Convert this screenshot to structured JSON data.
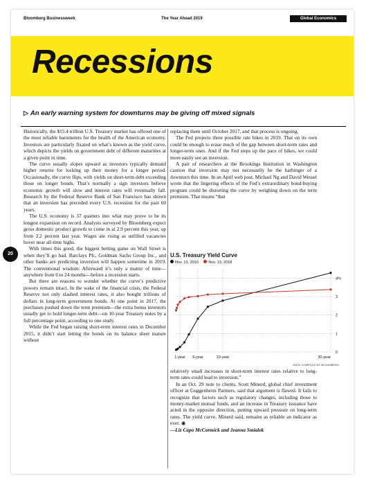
{
  "header": {
    "publication": "Bloomberg Businessweek",
    "issue": "The Year Ahead 2019",
    "section": "Global Economics"
  },
  "title": "Recessions",
  "deck": "An early warning system for downturns may be giving off mixed signals",
  "page_number": "20",
  "column1": [
    "Historically, the $15.4 trillion U.S. Treasury market has offered one of the most reliable barometers for the health of the American economy. Investors are particularly fixated on what’s known as the yield curve, which depicts the yields on government debt of different maturities at a given point in time.",
    "The curve usually slopes upward as investors typically demand higher returns for locking up their money for a longer period. Occasionally, the curve flips, with yields on short-term debt exceeding those on longer bonds. That’s normally a sign investors believe economic growth will slow and interest rates will eventually fall. Research by the Federal Reserve Bank of San Francisco has shown that an inversion has preceded every U.S. recession for the past 60 years.",
    "The U.S. economy is 37 quarters into what may prove to be its longest expansion on record. Analysts surveyed by Bloomberg expect gross domestic product growth to come in at 2.9 percent this year, up from 2.2 percent last year. Wages are rising as unfilled vacancies hover near all-time highs.",
    "With times this good, the biggest betting game on Wall Street is when they’ll go bad. Barclays Plc, Goldman Sachs Group Inc., and other banks are predicting inversion will happen sometime in 2019. The conventional wisdom: Afterward it’s only a matter of time—anywhere from 6 to 24 months—before a recession starts.",
    "But there are reasons to wonder whether the curve’s predictive powers remain intact. In the wake of the financial crisis, the Federal Reserve not only slashed interest rates, it also bought trillions of dollars in long-term government bonds. At one point in 2017, the purchases pushed down the term premium—the extra bonus investors usually get to hold longer-term debt—on 10-year Treasury notes by a full percentage point, according to one study.",
    "While the Fed began raising short-term interest rates in December 2015, it didn’t start letting the bonds on its balance sheet mature without"
  ],
  "column2_top": [
    "replacing them until October 2017, and that process is ongoing.",
    "The Fed projects three possible rate hikes in 2019. That on its own could be enough to erase much of the gap between short-term rates and longer-term ones. And if the Fed steps up the pace of hikes, we could more easily see an inversion.",
    "A pair of researchers at the Brookings Institution in Washington caution that inversion may not necessarily be the harbinger of a downturn this time. In an April web post, Michael Ng and David Wessel wrote that the lingering effects of the Fed’s extraordinary bond-buying program could be distorting the curve by weighing down on the term premium. That means “that"
  ],
  "column2_bottom": [
    "relatively small increases in short-term interest rates relative to long-term rates could lead to inversion.”",
    "In an Oct. 29 note to clients, Scott Minerd, global chief investment officer at Guggenheim Partners, said that argument is flawed. It fails to recognize that factors such as regulatory changes, including those to money-market mutual funds, and an increase in Treasury issuance have acted in the opposite direction, putting upward pressure on long-term rates. The yield curve, Minerd said, remains as reliable an indicator as ever."
  ],
  "byline": "—Liz Capo McCormick and Jeanna Smialek",
  "chart_data": {
    "type": "line",
    "title": "U.S. Treasury Yield Curve",
    "xlabel": "",
    "ylabel": "",
    "x_tick_labels": [
      "1-year",
      "5-year",
      "10-year",
      "30-year"
    ],
    "y_tick_labels": [
      "0",
      "1",
      "2",
      "3",
      "4%"
    ],
    "ylim": [
      0,
      4.5
    ],
    "source": "DATA: COMPILED BY BLOOMBERG",
    "x": [
      0.083,
      0.25,
      0.5,
      1,
      2,
      3,
      5,
      7,
      10,
      30
    ],
    "series": [
      {
        "name": "Nov. 13, 2010",
        "color": "#111111",
        "values": [
          0.12,
          0.13,
          0.18,
          0.27,
          0.52,
          0.95,
          1.8,
          2.45,
          2.78,
          4.28
        ]
      },
      {
        "name": "Nov. 13, 2018",
        "color": "#c0392b",
        "values": [
          2.25,
          2.38,
          2.56,
          2.71,
          2.9,
          2.97,
          3.02,
          3.11,
          3.15,
          3.38
        ]
      }
    ]
  }
}
